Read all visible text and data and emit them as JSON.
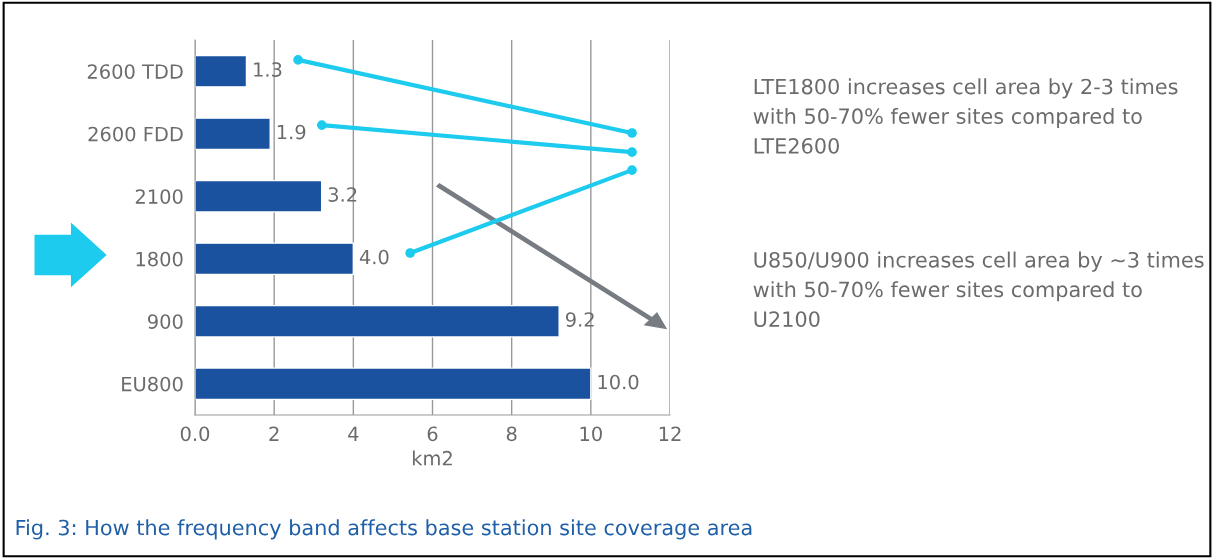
{
  "chart_data": {
    "type": "bar",
    "orientation": "horizontal",
    "categories": [
      "2600 TDD",
      "2600 FDD",
      "2100",
      "1800",
      "900",
      "EU800"
    ],
    "values": [
      1.3,
      1.9,
      3.2,
      4.0,
      9.2,
      10.0
    ],
    "value_labels": [
      "1.3",
      "1.9",
      "3.2",
      "4.0",
      "9.2",
      "10.0"
    ],
    "color": "#1a52a0",
    "xlabel": "km2",
    "xlim": [
      0,
      12
    ],
    "xticks": [
      {
        "value": 0,
        "label": "0.0"
      },
      2,
      4,
      6,
      8,
      10,
      12
    ],
    "grid": "x",
    "annotations": [
      "LTE1800 increases cell area by 2-3 times with 50-70% fewer sites compared to LTE2600",
      "U850/U900 increases cell area by ~3 times with 50-70% fewer sites compared to U2100",
      "Fig. 3: How the frequency band affects base station site coverage area"
    ]
  }
}
